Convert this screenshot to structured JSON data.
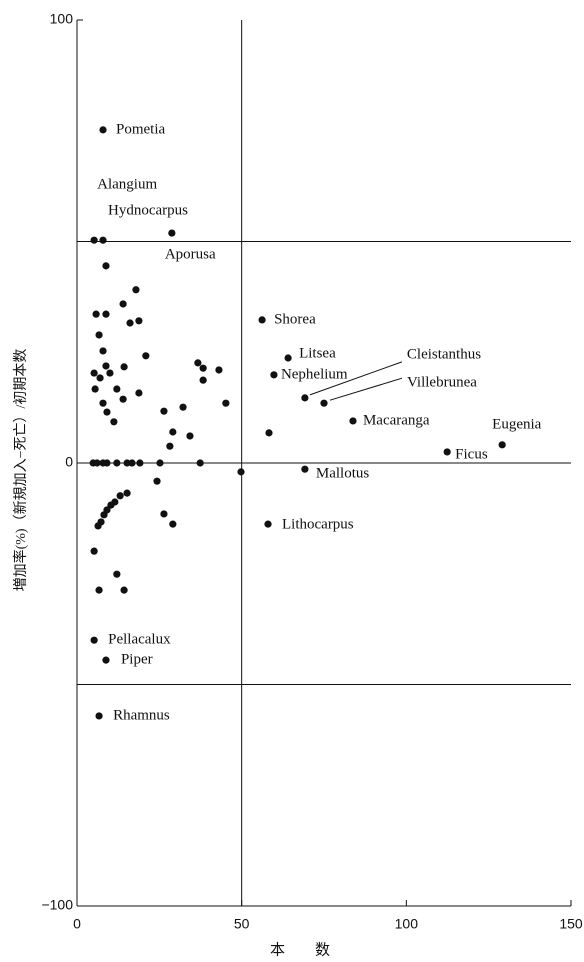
{
  "chart_data": {
    "type": "scatter",
    "xlabel": "本　　数",
    "ylabel": "増加率(%)（新規加入−死亡）/初期本数",
    "xlim": [
      0,
      150
    ],
    "ylim": [
      -100,
      100
    ],
    "xticks": [
      0,
      50,
      100,
      150
    ],
    "yticks": [
      {
        "value": -100,
        "label": "−100"
      },
      0,
      100
    ],
    "hlines": [
      -50,
      0,
      50
    ],
    "vlines": [
      50
    ],
    "color": "#111111",
    "x": [
      7.9,
      5.2,
      7.9,
      28.8,
      8.8,
      17.9,
      14.0,
      5.8,
      8.8,
      18.8,
      16.1,
      6.7,
      20.9,
      7.9,
      8.8,
      14.3,
      5.2,
      10.0,
      7.0,
      5.5,
      12.1,
      18.8,
      7.9,
      14.0,
      9.1,
      11.2,
      26.4,
      32.2,
      36.7,
      38.3,
      38.3,
      43.1,
      45.2,
      29.1,
      34.3,
      28.2,
      4.9,
      6.1,
      7.9,
      9.1,
      12.1,
      15.2,
      16.7,
      19.1,
      25.2,
      37.4,
      49.8,
      24.3,
      15.2,
      13.1,
      11.5,
      10.3,
      9.1,
      8.2,
      7.3,
      6.4,
      26.4,
      29.1,
      5.2,
      12.1,
      6.7,
      14.3,
      5.2,
      8.8,
      6.7,
      56.2,
      64.1,
      59.8,
      69.2,
      75.0,
      83.8,
      58.3,
      69.2,
      58.0,
      112.4,
      129.1
    ],
    "y": [
      75.2,
      50.3,
      50.3,
      51.9,
      44.5,
      39.1,
      35.9,
      33.6,
      33.6,
      32.1,
      31.6,
      28.9,
      24.2,
      25.3,
      21.9,
      21.7,
      20.3,
      20.3,
      19.2,
      16.7,
      16.7,
      15.8,
      13.5,
      14.4,
      11.5,
      9.3,
      11.7,
      12.6,
      22.6,
      21.4,
      18.7,
      21.0,
      13.5,
      7.0,
      6.1,
      3.8,
      0,
      0,
      0,
      0,
      0,
      0,
      0,
      0,
      0,
      0,
      -2.0,
      -4.1,
      -6.8,
      -7.4,
      -8.8,
      -9.5,
      -10.6,
      -11.7,
      -13.3,
      -14.2,
      -11.5,
      -13.8,
      -19.9,
      -25.1,
      -28.7,
      -28.7,
      -40.0,
      -44.5,
      -57.1,
      32.3,
      23.7,
      19.9,
      14.7,
      13.5,
      9.5,
      6.8,
      -1.4,
      -13.8,
      2.5,
      4.1
    ],
    "point_labels": [
      "Pometia",
      "Alangium",
      "Hydnocarpus",
      "Aporusa",
      null,
      null,
      null,
      null,
      null,
      null,
      null,
      null,
      null,
      null,
      null,
      null,
      null,
      null,
      null,
      null,
      null,
      null,
      null,
      null,
      null,
      null,
      null,
      null,
      null,
      null,
      null,
      null,
      null,
      null,
      null,
      null,
      null,
      null,
      null,
      null,
      null,
      null,
      null,
      null,
      null,
      null,
      null,
      null,
      null,
      null,
      null,
      null,
      null,
      null,
      null,
      null,
      null,
      null,
      null,
      null,
      null,
      null,
      "Pellacalux",
      "Piper",
      "Rhamnus",
      "Shorea",
      "Litsea",
      "Nephelium",
      "Cleistanthus",
      "Villebrunea",
      "Macaranga",
      null,
      "Mallotus",
      "Lithocarpus",
      "Ficus",
      "Eugenia"
    ]
  }
}
